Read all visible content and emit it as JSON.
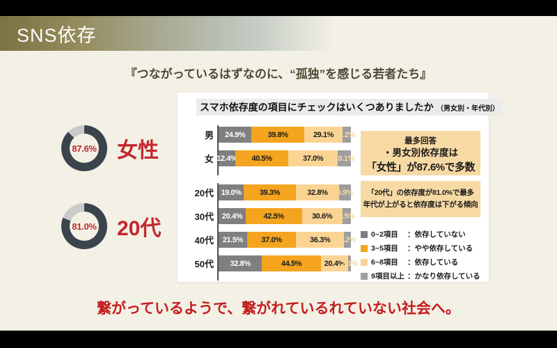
{
  "page": {
    "title": "SNS依存",
    "subtitle": "『つながっているはずなのに、“孤独”を感じる若者たち』",
    "footer": "繋がっているようで、繋がれているれていない社会へ。",
    "colors": {
      "background": "#f3f0e5",
      "accent_red": "#c2282e",
      "footer_red": "#c31d1f",
      "header_gradient_left": "#7b7245",
      "note_box": "#f7d9a4"
    }
  },
  "donuts": [
    {
      "value": 87.6,
      "value_label": "87.6%",
      "label": "女性",
      "ring_color": "#3a444d",
      "track_color": "#c9cbca"
    },
    {
      "value": 81.0,
      "value_label": "81.0%",
      "label": "20代",
      "ring_color": "#3a444d",
      "track_color": "#c9cbca"
    }
  ],
  "panel": {
    "title": "スマホ依存度の項目にチェックはいくつありましたか",
    "title_suffix": "（男女別・年代別）"
  },
  "chart_data": {
    "type": "bar",
    "stacked": true,
    "orientation": "horizontal",
    "unit": "%",
    "title": "スマホ依存度の項目にチェックはいくつありましたか（男女別・年代別）",
    "segments": [
      {
        "label": "0~2項目",
        "desc": "：依存していない",
        "color": "#7f7f7f"
      },
      {
        "label": "3~5項目",
        "desc": "：やや依存している",
        "color": "#f4a41f"
      },
      {
        "label": "6~8項目",
        "desc": "：依存している",
        "color": "#fbd493"
      },
      {
        "label": "9項目以上",
        "desc": "：かなり依存している",
        "color": "#9e9e9e"
      }
    ],
    "segment_text_colors": [
      "#ffffff",
      "#1a1a1a",
      "#1a1a1a",
      "#f7d8a2"
    ],
    "groups": [
      {
        "name": "gender",
        "rows": [
          {
            "category": "男",
            "values": [
              24.9,
              39.8,
              29.1,
              6.2
            ]
          },
          {
            "category": "女",
            "values": [
              12.4,
              40.5,
              37.0,
              10.1
            ]
          }
        ]
      },
      {
        "name": "age",
        "rows": [
          {
            "category": "20代",
            "values": [
              19.0,
              39.3,
              32.8,
              8.9
            ]
          },
          {
            "category": "30代",
            "values": [
              20.4,
              42.5,
              30.6,
              6.5
            ]
          },
          {
            "category": "40代",
            "values": [
              21.5,
              37.0,
              36.3,
              5.2
            ]
          },
          {
            "category": "50代",
            "values": [
              32.8,
              44.5,
              20.4,
              2.3
            ]
          }
        ]
      }
    ]
  },
  "notes": [
    {
      "lines": [
        "最多回答",
        "・男女別依存度は",
        "「女性」が87.6%で多数"
      ]
    },
    {
      "lines": [
        "「20代」の依存度が81.0%で最多",
        "年代が上がると依存度は下がる傾向"
      ]
    }
  ]
}
